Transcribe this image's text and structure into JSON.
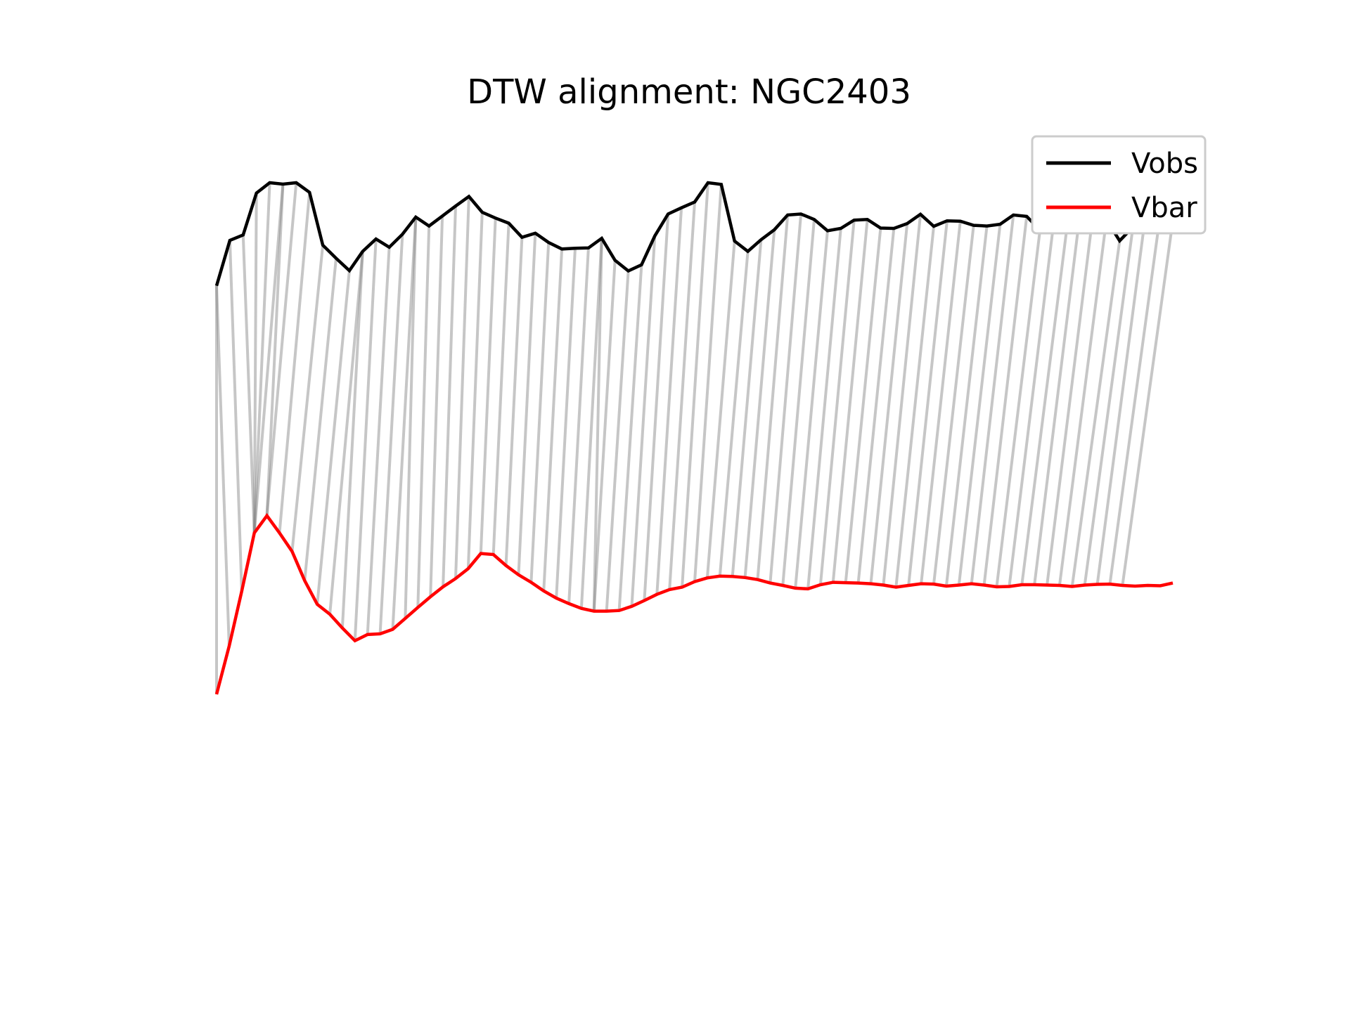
{
  "chart_data": {
    "type": "line",
    "title": "DTW alignment: NGC2403",
    "xlabel": "",
    "ylabel": "",
    "axes_visible": false,
    "grid": false,
    "legend": {
      "placement": "top-right",
      "entries": [
        "Vobs",
        "Vbar"
      ]
    },
    "ylim": [
      -1.0,
      1.0
    ],
    "series": [
      {
        "name": "Vobs",
        "color": "#000000",
        "values": [
          0.7,
          0.832,
          0.848,
          0.97,
          1.0,
          0.996,
          1.0,
          0.972,
          0.818,
          0.78,
          0.744,
          0.8,
          0.836,
          0.812,
          0.85,
          0.9,
          0.874,
          0.903,
          0.932,
          0.96,
          0.914,
          0.897,
          0.882,
          0.841,
          0.853,
          0.826,
          0.807,
          0.809,
          0.81,
          0.838,
          0.774,
          0.743,
          0.761,
          0.845,
          0.909,
          0.927,
          0.944,
          1.0,
          0.995,
          0.83,
          0.8,
          0.834,
          0.863,
          0.906,
          0.909,
          0.893,
          0.86,
          0.867,
          0.891,
          0.893,
          0.868,
          0.867,
          0.881,
          0.908,
          0.873,
          0.889,
          0.888,
          0.876,
          0.874,
          0.879,
          0.906,
          0.902,
          0.862,
          0.874,
          0.861,
          0.907,
          0.911,
          0.892,
          0.831,
          0.871,
          0.921,
          0.891,
          0.889
        ]
      },
      {
        "name": "Vbar",
        "color": "#ff0000",
        "values": [
          -0.49,
          -0.35,
          -0.19,
          -0.02,
          0.03,
          -0.02,
          -0.074,
          -0.159,
          -0.228,
          -0.257,
          -0.297,
          -0.334,
          -0.316,
          -0.314,
          -0.301,
          -0.269,
          -0.237,
          -0.206,
          -0.177,
          -0.153,
          -0.124,
          -0.08,
          -0.083,
          -0.115,
          -0.142,
          -0.164,
          -0.189,
          -0.21,
          -0.226,
          -0.24,
          -0.248,
          -0.248,
          -0.246,
          -0.234,
          -0.217,
          -0.199,
          -0.185,
          -0.178,
          -0.162,
          -0.151,
          -0.146,
          -0.147,
          -0.15,
          -0.156,
          -0.166,
          -0.173,
          -0.181,
          -0.183,
          -0.171,
          -0.164,
          -0.165,
          -0.166,
          -0.168,
          -0.172,
          -0.178,
          -0.173,
          -0.168,
          -0.169,
          -0.175,
          -0.172,
          -0.168,
          -0.172,
          -0.177,
          -0.176,
          -0.171,
          -0.171,
          -0.172,
          -0.173,
          -0.176,
          -0.172,
          -0.17,
          -0.169,
          -0.173,
          -0.175,
          -0.173,
          -0.174,
          -0.166
        ]
      }
    ],
    "alignment": {
      "style": "gray connecting segments between matched points",
      "pairs": [
        [
          0,
          0
        ],
        [
          0,
          1
        ],
        [
          1,
          2
        ],
        [
          2,
          3
        ],
        [
          3,
          3
        ],
        [
          4,
          3
        ],
        [
          5,
          3
        ],
        [
          5,
          4
        ],
        [
          6,
          4
        ],
        [
          7,
          5
        ],
        [
          8,
          6
        ],
        [
          9,
          7
        ],
        [
          10,
          8
        ],
        [
          11,
          9
        ],
        [
          11,
          10
        ],
        [
          12,
          11
        ],
        [
          13,
          12
        ],
        [
          14,
          13
        ],
        [
          15,
          14
        ],
        [
          15,
          15
        ],
        [
          16,
          16
        ],
        [
          17,
          17
        ],
        [
          18,
          18
        ],
        [
          19,
          19
        ],
        [
          20,
          20
        ],
        [
          21,
          21
        ],
        [
          22,
          22
        ],
        [
          23,
          23
        ],
        [
          24,
          24
        ],
        [
          25,
          25
        ],
        [
          26,
          26
        ],
        [
          27,
          27
        ],
        [
          28,
          28
        ],
        [
          29,
          29
        ],
        [
          29,
          30
        ],
        [
          30,
          30
        ],
        [
          31,
          31
        ],
        [
          32,
          32
        ],
        [
          33,
          33
        ],
        [
          34,
          34
        ],
        [
          35,
          35
        ],
        [
          36,
          36
        ],
        [
          37,
          37
        ],
        [
          38,
          38
        ],
        [
          39,
          39
        ],
        [
          40,
          40
        ],
        [
          41,
          41
        ],
        [
          42,
          42
        ],
        [
          43,
          43
        ],
        [
          44,
          44
        ],
        [
          45,
          45
        ],
        [
          46,
          46
        ],
        [
          47,
          47
        ],
        [
          48,
          48
        ],
        [
          49,
          49
        ],
        [
          50,
          50
        ],
        [
          51,
          51
        ],
        [
          52,
          52
        ],
        [
          53,
          53
        ],
        [
          54,
          54
        ],
        [
          55,
          55
        ],
        [
          56,
          56
        ],
        [
          57,
          57
        ],
        [
          58,
          58
        ],
        [
          59,
          59
        ],
        [
          60,
          60
        ],
        [
          61,
          61
        ],
        [
          62,
          62
        ],
        [
          63,
          63
        ],
        [
          64,
          64
        ],
        [
          65,
          65
        ],
        [
          66,
          66
        ],
        [
          67,
          67
        ],
        [
          68,
          68
        ],
        [
          69,
          69
        ],
        [
          70,
          70
        ],
        [
          71,
          71
        ],
        [
          72,
          72
        ]
      ]
    }
  }
}
